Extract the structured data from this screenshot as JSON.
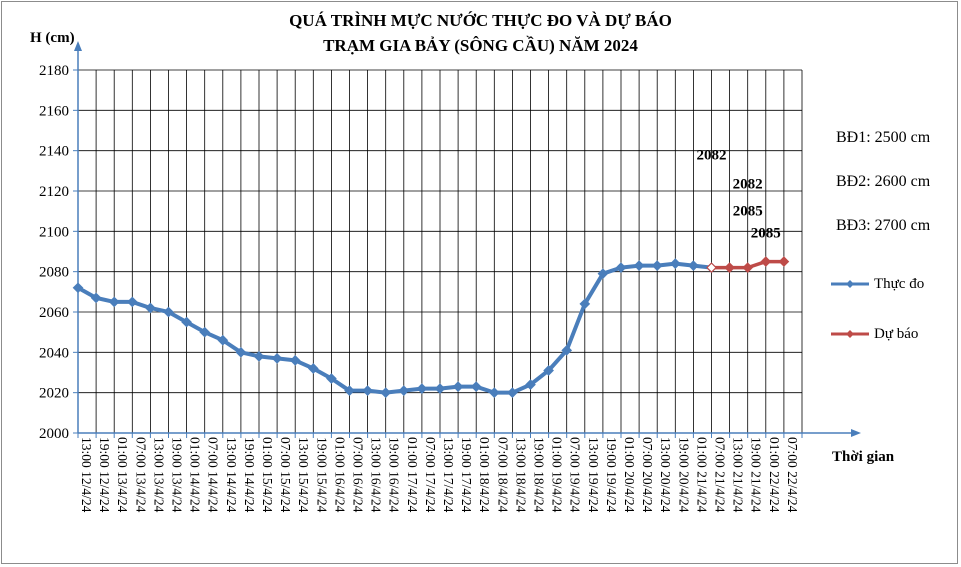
{
  "chart_data": {
    "type": "line",
    "title": "QUÁ TRÌNH MỰC NƯỚC THỰC ĐO VÀ DỰ BÁO",
    "subtitle": "TRẠM GIA BẢY (SÔNG CẦU) NĂM 2024",
    "ylabel": "H (cm)",
    "xlabel": "Thời gian",
    "ylim": [
      2000,
      2180
    ],
    "yticks": [
      2000,
      2020,
      2040,
      2060,
      2080,
      2100,
      2120,
      2140,
      2160,
      2180
    ],
    "grid": true,
    "categories": [
      "13:00 12/4/24",
      "19:00 12/4/24",
      "01:00 13/4/24",
      "07:00 13/4/24",
      "13:00 13/4/24",
      "19:00 13/4/24",
      "01:00 14/4/24",
      "07:00 14/4/24",
      "13:00 14/4/24",
      "19:00 14/4/24",
      "01:00 15/4/24",
      "07:00 15/4/24",
      "13:00 15/4/24",
      "19:00 15/4/24",
      "01:00 16/4/24",
      "07:00 16/4/24",
      "13:00 16/4/24",
      "19:00 16/4/24",
      "01:00 17/4/24",
      "07:00 17/4/24",
      "13:00 17/4/24",
      "19:00 17/4/24",
      "01:00 18/4/24",
      "07:00 18/4/24",
      "13:00 18/4/24",
      "19:00 18/4/24",
      "01:00 19/4/24",
      "07:00 19/4/24",
      "13:00 19/4/24",
      "19:00 19/4/24",
      "01:00 20/4/24",
      "07:00 20/4/24",
      "13:00 20/4/24",
      "19:00 20/4/24",
      "01:00 21/4/24",
      "07:00 21/4/24",
      "13:00 21/4/24",
      "19:00 21/4/24",
      "01:00 22/4/24",
      "07:00 22/4/24"
    ],
    "series": [
      {
        "name": "Thực đo",
        "color": "#4a7ebb",
        "values": [
          2072,
          2067,
          2065,
          2065,
          2062,
          2060,
          2055,
          2050,
          2046,
          2040,
          2038,
          2037,
          2036,
          2032,
          2027,
          2021,
          2021,
          2020,
          2021,
          2022,
          2022,
          2023,
          2023,
          2020,
          2020,
          2024,
          2031,
          2041,
          2064,
          2079,
          2082,
          2083,
          2083,
          2084,
          2083,
          2082,
          null,
          null,
          null,
          null
        ]
      },
      {
        "name": "Dự báo",
        "color": "#be4b48",
        "values": [
          null,
          null,
          null,
          null,
          null,
          null,
          null,
          null,
          null,
          null,
          null,
          null,
          null,
          null,
          null,
          null,
          null,
          null,
          null,
          null,
          null,
          null,
          null,
          null,
          null,
          null,
          null,
          null,
          null,
          null,
          null,
          null,
          null,
          null,
          null,
          2082,
          2082,
          2082,
          2085,
          2085
        ]
      }
    ],
    "annotations": [
      "2082",
      "2082",
      "2085",
      "2085"
    ],
    "alarm_levels": [
      "BĐ1: 2500 cm",
      "BĐ2: 2600 cm",
      "BĐ3: 2700 cm"
    ],
    "legend_position": "right"
  }
}
